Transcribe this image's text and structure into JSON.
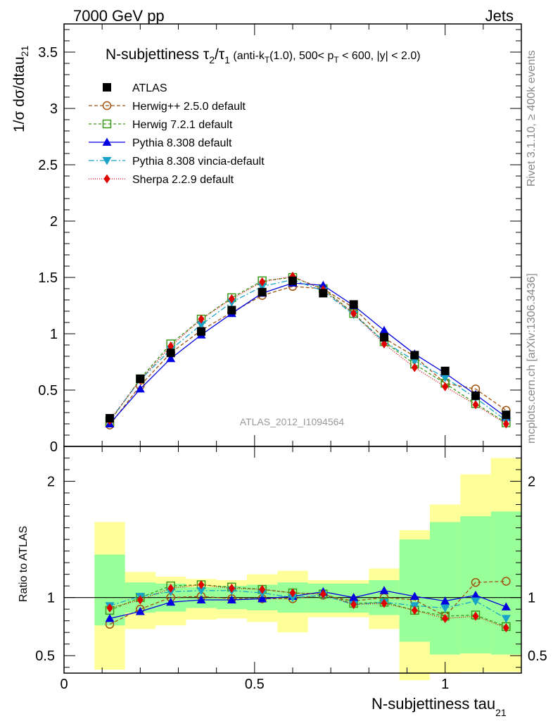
{
  "header": {
    "left": "7000 GeV pp",
    "right": "Jets"
  },
  "side_labels": {
    "rivet": "Rivet 3.1.10, ≥ 400k events",
    "mcplots": "mcplots.cern.ch [arXiv:1306.3436]"
  },
  "watermark": "ATLAS_2012_I1094564",
  "colors": {
    "ATLAS": "#000000",
    "Herwig++ 2.5.0 default": "#a0520f",
    "Herwig 7.2.1 default": "#3a9a1a",
    "Pythia 8.308 default": "#0000e0",
    "Pythia 8.308 vincia-default": "#1aa3c8",
    "Sherpa 2.2.9 default": "#e00000",
    "band_inner": "#99ff99",
    "band_outer": "#ffff99"
  },
  "chart_data": [
    {
      "type": "line",
      "title_parts": {
        "main": "N-subjettiness τ",
        "num_sub": "2",
        "slash": "/τ",
        "den_sub": "1",
        "cond_a": " (anti-k",
        "cond_b_sub": "T",
        "cond_c": "(1.0), 500< p",
        "cond_d_sub": "T",
        "cond_e": " < 600, |y| < 2.0)"
      },
      "ylabel": "1/σ dσ/dtau",
      "ylabel_sub": "21",
      "xlim": [
        0,
        1.2
      ],
      "ylim": [
        0,
        3.75
      ],
      "yticks": [
        0,
        0.5,
        1,
        1.5,
        2,
        2.5,
        3,
        3.5
      ],
      "ytick_labels": [
        "0",
        "0.5",
        "1",
        "1.5",
        "2",
        "2.5",
        "3",
        "3.5"
      ],
      "x": [
        0.12,
        0.2,
        0.28,
        0.36,
        0.44,
        0.52,
        0.6,
        0.68,
        0.76,
        0.84,
        0.92,
        1.0,
        1.08,
        1.16
      ],
      "series": [
        {
          "name": "ATLAS",
          "values": [
            0.25,
            0.6,
            0.83,
            1.02,
            1.21,
            1.37,
            1.47,
            1.36,
            1.26,
            0.97,
            0.81,
            0.67,
            0.45,
            0.28
          ]
        },
        {
          "name": "Herwig++ 2.5.0 default",
          "values": [
            0.19,
            0.54,
            0.83,
            1.03,
            1.19,
            1.34,
            1.42,
            1.4,
            1.23,
            0.96,
            0.8,
            0.56,
            0.51,
            0.32
          ]
        },
        {
          "name": "Herwig 7.2.1 default",
          "values": [
            0.22,
            0.6,
            0.91,
            1.13,
            1.32,
            1.47,
            1.5,
            1.4,
            1.18,
            0.93,
            0.73,
            0.56,
            0.38,
            0.21
          ]
        },
        {
          "name": "Pythia 8.308 default",
          "values": [
            0.2,
            0.51,
            0.78,
            0.99,
            1.18,
            1.36,
            1.45,
            1.43,
            1.25,
            1.03,
            0.82,
            0.65,
            0.46,
            0.26
          ]
        },
        {
          "name": "Pythia 8.308 vincia-default",
          "values": [
            0.23,
            0.59,
            0.86,
            1.08,
            1.28,
            1.42,
            1.48,
            1.38,
            1.17,
            0.93,
            0.76,
            0.61,
            0.43,
            0.23
          ]
        },
        {
          "name": "Sherpa 2.2.9 default",
          "values": [
            0.23,
            0.59,
            0.89,
            1.13,
            1.31,
            1.46,
            1.51,
            1.39,
            1.18,
            0.91,
            0.7,
            0.53,
            0.37,
            0.2
          ]
        }
      ],
      "legend": [
        "ATLAS",
        "Herwig++ 2.5.0 default",
        "Herwig 7.2.1 default",
        "Pythia 8.308 default",
        "Pythia 8.308 vincia-default",
        "Sherpa 2.2.9 default"
      ],
      "legend_position": "top-left"
    },
    {
      "type": "line",
      "ylabel": "Ratio to ATLAS",
      "xlabel": "N-subjettiness tau",
      "xlabel_sub": "21",
      "xlim": [
        0,
        1.2
      ],
      "ylim": [
        0.35,
        2.3
      ],
      "yticks": [
        0.5,
        1,
        2
      ],
      "ytick_labels": [
        "0.5",
        "1",
        "2"
      ],
      "xticks": [
        0,
        0.5,
        1
      ],
      "xtick_labels": [
        "0",
        "0.5",
        "1"
      ],
      "reference_line": 1,
      "bins": [
        [
          0.08,
          0.16
        ],
        [
          0.16,
          0.24
        ],
        [
          0.24,
          0.32
        ],
        [
          0.32,
          0.4
        ],
        [
          0.4,
          0.48
        ],
        [
          0.48,
          0.56
        ],
        [
          0.56,
          0.64
        ],
        [
          0.64,
          0.72
        ],
        [
          0.72,
          0.8
        ],
        [
          0.8,
          0.88
        ],
        [
          0.88,
          0.96
        ],
        [
          0.96,
          1.04
        ],
        [
          1.04,
          1.12
        ],
        [
          1.12,
          1.2
        ]
      ],
      "band_inner": [
        [
          0.76,
          1.37
        ],
        [
          0.87,
          1.13
        ],
        [
          0.88,
          1.12
        ],
        [
          0.91,
          1.09
        ],
        [
          0.9,
          1.1
        ],
        [
          0.89,
          1.11
        ],
        [
          0.87,
          1.13
        ],
        [
          0.87,
          1.12
        ],
        [
          0.87,
          1.12
        ],
        [
          0.85,
          1.15
        ],
        [
          0.62,
          1.5
        ],
        [
          0.51,
          1.65
        ],
        [
          0.52,
          1.7
        ],
        [
          0.51,
          1.74
        ]
      ],
      "band_outer": [
        [
          0.38,
          1.65
        ],
        [
          0.73,
          1.22
        ],
        [
          0.76,
          1.18
        ],
        [
          0.81,
          1.16
        ],
        [
          0.82,
          1.15
        ],
        [
          0.79,
          1.2
        ],
        [
          0.7,
          1.23
        ],
        [
          0.83,
          1.15
        ],
        [
          0.83,
          1.15
        ],
        [
          0.73,
          1.25
        ],
        [
          0.29,
          1.58
        ],
        [
          0.35,
          1.8
        ],
        [
          0.36,
          2.06
        ],
        [
          0.36,
          2.2
        ]
      ],
      "series": [
        {
          "name": "Herwig++ 2.5.0 default",
          "values": [
            0.77,
            0.9,
            1.0,
            1.01,
            0.99,
            0.99,
            0.99,
            1.02,
            0.97,
            1.0,
            0.98,
            0.84,
            1.13,
            1.14
          ]
        },
        {
          "name": "Herwig 7.2.1 default",
          "values": [
            0.89,
            1.0,
            1.1,
            1.11,
            1.09,
            1.07,
            1.04,
            1.03,
            0.95,
            0.96,
            0.89,
            0.84,
            0.85,
            0.75
          ]
        },
        {
          "name": "Pythia 8.308 default",
          "values": [
            0.82,
            0.88,
            0.96,
            0.98,
            0.98,
            0.99,
            1.01,
            1.05,
            1.0,
            1.06,
            1.01,
            0.97,
            1.02,
            0.92
          ]
        },
        {
          "name": "Pythia 8.308 vincia-default",
          "values": [
            0.93,
            1.01,
            1.05,
            1.06,
            1.06,
            1.04,
            1.0,
            1.02,
            0.94,
            0.96,
            0.93,
            0.91,
            0.97,
            0.82
          ]
        },
        {
          "name": "Sherpa 2.2.9 default",
          "values": [
            0.91,
            0.98,
            1.08,
            1.11,
            1.08,
            1.07,
            1.04,
            1.03,
            0.94,
            0.95,
            0.89,
            0.82,
            0.84,
            0.74
          ]
        }
      ]
    }
  ]
}
